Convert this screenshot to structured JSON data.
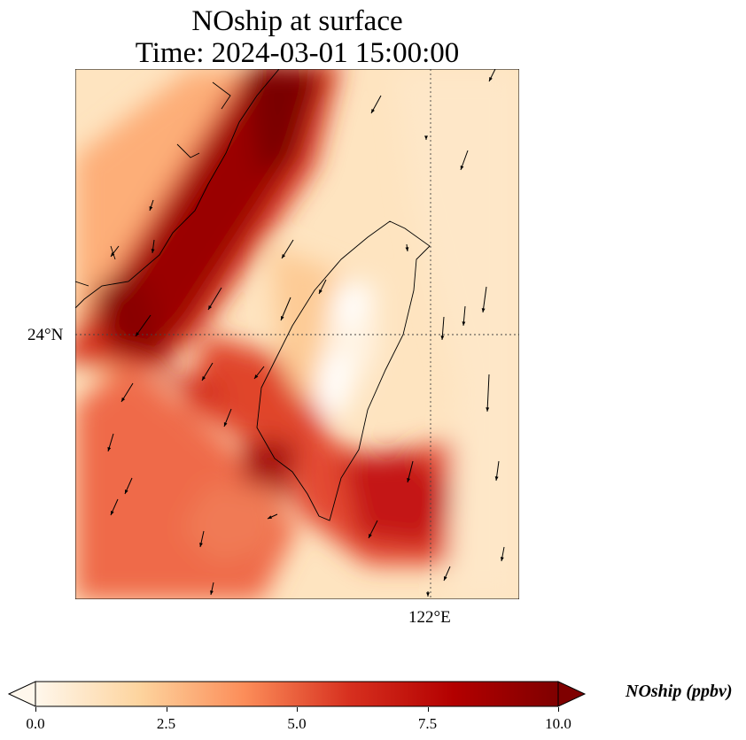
{
  "title": {
    "line1": "NOship at surface",
    "line2": "Time: 2024-03-01 15:00:00"
  },
  "axes": {
    "lat_label": "24°N",
    "lon_label": "122°E"
  },
  "colorbar": {
    "label": "NOship (ppbv)",
    "ticks": [
      "0.0",
      "2.5",
      "5.0",
      "7.5",
      "10.0"
    ],
    "range": [
      0,
      10
    ],
    "colors": [
      "#fff7ec",
      "#fdd49e",
      "#fc8d59",
      "#d7301f",
      "#b30000",
      "#7f0000"
    ]
  }
}
